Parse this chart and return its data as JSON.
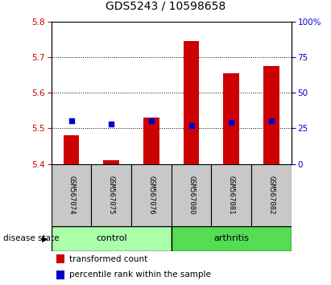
{
  "title": "GDS5243 / 10598658",
  "samples": [
    "GSM567074",
    "GSM567075",
    "GSM567076",
    "GSM567080",
    "GSM567081",
    "GSM567082"
  ],
  "groups": [
    "control",
    "control",
    "control",
    "arthritis",
    "arthritis",
    "arthritis"
  ],
  "transformed_count": [
    5.48,
    5.41,
    5.53,
    5.745,
    5.655,
    5.675
  ],
  "percentile_rank": [
    30,
    28,
    30,
    27,
    29,
    30
  ],
  "ylim_left": [
    5.4,
    5.8
  ],
  "ylim_right": [
    0,
    100
  ],
  "yticks_left": [
    5.4,
    5.5,
    5.6,
    5.7,
    5.8
  ],
  "yticks_right": [
    0,
    25,
    50,
    75,
    100
  ],
  "bar_base": 5.4,
  "bar_color": "#cc0000",
  "dot_color": "#0000cc",
  "control_color": "#aaffaa",
  "arthritis_color": "#55dd55",
  "label_bg_color": "#c8c8c8",
  "legend_bar_label": "transformed count",
  "legend_dot_label": "percentile rank within the sample",
  "group_label": "disease state",
  "title_fontsize": 10,
  "tick_fontsize": 7.5,
  "label_fontsize": 6.5,
  "group_fontsize": 8,
  "legend_fontsize": 7.5
}
